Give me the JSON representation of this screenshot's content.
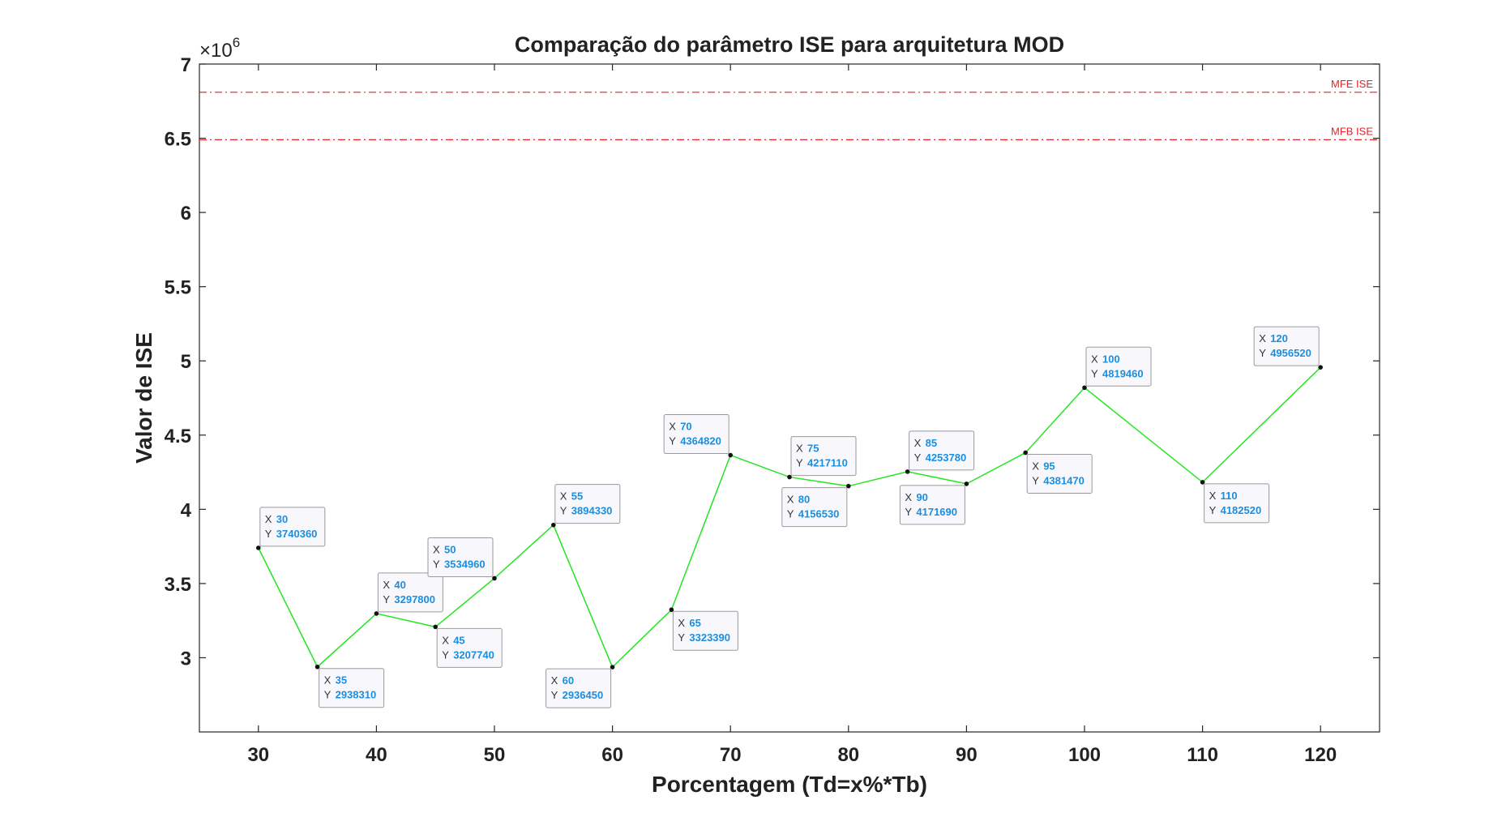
{
  "chart_data": {
    "type": "line",
    "title": "Comparação do parâmetro ISE para arquitetura MOD",
    "xlabel": "Porcentagem (Td=x%*Tb)",
    "ylabel": "Valor de ISE",
    "y_exponent_label": "×10",
    "y_exponent_power": "6",
    "xlim": [
      25,
      125
    ],
    "ylim": [
      2.5,
      7
    ],
    "y_scale_factor": 1000000,
    "x_ticks": [
      30,
      40,
      50,
      60,
      70,
      80,
      90,
      100,
      110,
      120
    ],
    "y_ticks": [
      3,
      3.5,
      4,
      4.5,
      5,
      5.5,
      6,
      6.5,
      7
    ],
    "x_tick_labels": [
      "30",
      "40",
      "50",
      "60",
      "70",
      "80",
      "90",
      "100",
      "110",
      "120"
    ],
    "y_tick_labels": [
      "3",
      "3.5",
      "4",
      "4.5",
      "5",
      "5.5",
      "6",
      "6.5",
      "7"
    ],
    "grid": false,
    "series": [
      {
        "color": "#22e622",
        "x": [
          30,
          35,
          40,
          45,
          50,
          55,
          60,
          65,
          70,
          75,
          80,
          85,
          90,
          95,
          100,
          110,
          120
        ],
        "y": [
          3740360,
          2938310,
          3297800,
          3207740,
          3534960,
          3894330,
          2936450,
          3323390,
          4364820,
          4217110,
          4156530,
          4253780,
          4171690,
          4381470,
          4819460,
          4182520,
          4956520
        ]
      }
    ],
    "reference_lines": [
      {
        "label": "MFE ISE",
        "y": 6810000,
        "color": "#e8202a"
      },
      {
        "label": "MFB ISE",
        "y": 6490000,
        "color": "#e8202a"
      }
    ],
    "datatips": [
      {
        "x_key": "X",
        "x_value": "30",
        "y_key": "Y",
        "y_value": "3740360",
        "side": "above"
      },
      {
        "x_key": "X",
        "x_value": "35",
        "y_key": "Y",
        "y_value": "2938310",
        "side": "below"
      },
      {
        "x_key": "X",
        "x_value": "40",
        "y_key": "Y",
        "y_value": "3297800",
        "side": "above"
      },
      {
        "x_key": "X",
        "x_value": "45",
        "y_key": "Y",
        "y_value": "3207740",
        "side": "below"
      },
      {
        "x_key": "X",
        "x_value": "50",
        "y_key": "Y",
        "y_value": "3534960",
        "side": "above-left"
      },
      {
        "x_key": "X",
        "x_value": "55",
        "y_key": "Y",
        "y_value": "3894330",
        "side": "above"
      },
      {
        "x_key": "X",
        "x_value": "60",
        "y_key": "Y",
        "y_value": "2936450",
        "side": "below-left"
      },
      {
        "x_key": "X",
        "x_value": "65",
        "y_key": "Y",
        "y_value": "3323390",
        "side": "below"
      },
      {
        "x_key": "X",
        "x_value": "70",
        "y_key": "Y",
        "y_value": "4364820",
        "side": "above-left"
      },
      {
        "x_key": "X",
        "x_value": "75",
        "y_key": "Y",
        "y_value": "4217110",
        "side": "above"
      },
      {
        "x_key": "X",
        "x_value": "80",
        "y_key": "Y",
        "y_value": "4156530",
        "side": "below-left"
      },
      {
        "x_key": "X",
        "x_value": "85",
        "y_key": "Y",
        "y_value": "4253780",
        "side": "above"
      },
      {
        "x_key": "X",
        "x_value": "90",
        "y_key": "Y",
        "y_value": "4171690",
        "side": "below-left"
      },
      {
        "x_key": "X",
        "x_value": "95",
        "y_key": "Y",
        "y_value": "4381470",
        "side": "below"
      },
      {
        "x_key": "X",
        "x_value": "100",
        "y_key": "Y",
        "y_value": "4819460",
        "side": "above"
      },
      {
        "x_key": "X",
        "x_value": "110",
        "y_key": "Y",
        "y_value": "4182520",
        "side": "below"
      },
      {
        "x_key": "X",
        "x_value": "120",
        "y_key": "Y",
        "y_value": "4956520",
        "side": "above-left"
      }
    ]
  }
}
